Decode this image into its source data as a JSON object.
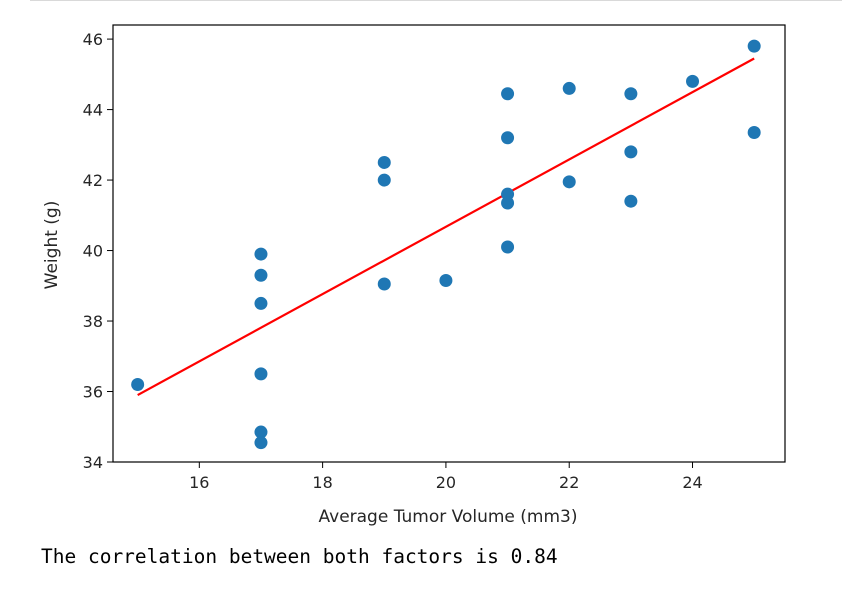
{
  "output": {
    "text": "The correlation between both factors is 0.84"
  },
  "chart_data": {
    "type": "scatter",
    "title": "",
    "xlabel": "Average Tumor Volume (mm3)",
    "ylabel": "Weight (g)",
    "xlim": [
      14.6,
      25.5
    ],
    "ylim": [
      34,
      46.4
    ],
    "xticks": [
      16,
      18,
      20,
      22,
      24
    ],
    "yticks": [
      34,
      36,
      38,
      40,
      42,
      44,
      46
    ],
    "grid": false,
    "legend": "none",
    "colors": {
      "points": "#1f77b4",
      "regression": "#ff0000"
    },
    "points": [
      [
        15,
        36.2
      ],
      [
        17,
        39.9
      ],
      [
        17,
        39.3
      ],
      [
        17,
        38.5
      ],
      [
        17,
        36.5
      ],
      [
        17,
        34.85
      ],
      [
        17,
        34.55
      ],
      [
        19,
        42.5
      ],
      [
        19,
        42.0
      ],
      [
        19,
        39.05
      ],
      [
        20,
        39.15
      ],
      [
        21,
        44.45
      ],
      [
        21,
        43.2
      ],
      [
        21,
        41.6
      ],
      [
        21,
        41.35
      ],
      [
        21,
        40.1
      ],
      [
        22,
        44.6
      ],
      [
        22,
        41.95
      ],
      [
        23,
        44.45
      ],
      [
        23,
        42.8
      ],
      [
        23,
        41.4
      ],
      [
        24,
        44.8
      ],
      [
        25,
        45.8
      ],
      [
        25,
        43.35
      ]
    ],
    "regression_line": {
      "x": [
        15,
        25
      ],
      "y": [
        35.9,
        45.45
      ]
    }
  }
}
